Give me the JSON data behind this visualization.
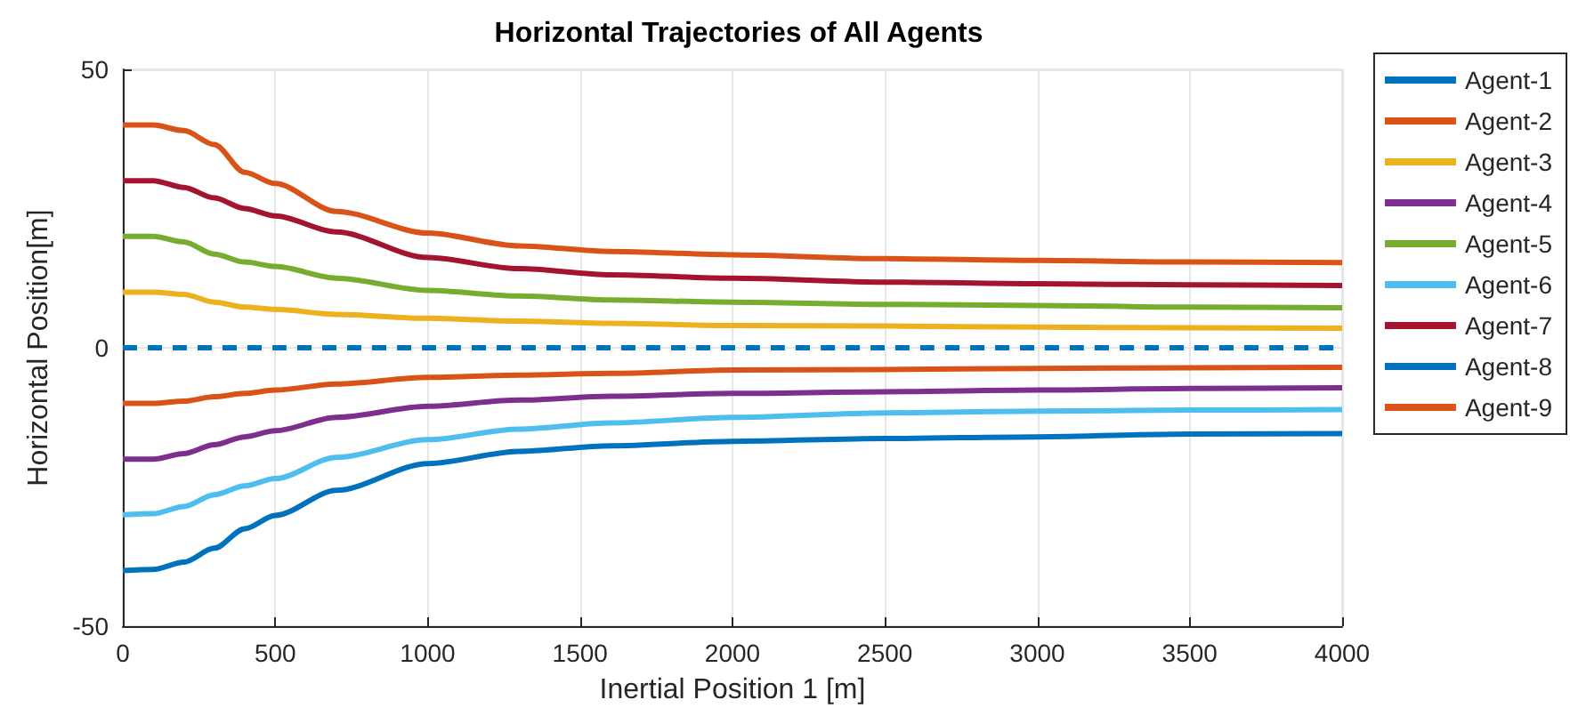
{
  "chart_data": {
    "type": "line",
    "title": "Horizontal Trajectories of All Agents",
    "xlabel": "Inertial Position 1 [m]",
    "ylabel": "Horizontal Position[m]",
    "x": [
      0,
      100,
      200,
      300,
      400,
      500,
      700,
      1000,
      1300,
      1600,
      2000,
      2500,
      3000,
      3500,
      4000
    ],
    "series": [
      {
        "name": "Agent-1",
        "color": "#0072bd",
        "line_style": "dashed",
        "values": [
          0,
          0,
          0,
          0,
          0,
          0,
          0,
          0,
          0,
          0,
          0,
          0,
          0,
          0,
          0
        ]
      },
      {
        "name": "Agent-2",
        "color": "#d95319",
        "values": [
          40,
          40,
          39,
          36.5,
          31.5,
          29.5,
          24.5,
          20.6,
          18.3,
          17.3,
          16.7,
          16.0,
          15.7,
          15.4,
          15.3
        ]
      },
      {
        "name": "Agent-3",
        "color": "#edb120",
        "values": [
          10,
          10,
          9.6,
          8.2,
          7.3,
          6.9,
          6.0,
          5.3,
          4.8,
          4.4,
          4.0,
          3.9,
          3.7,
          3.6,
          3.5
        ]
      },
      {
        "name": "Agent-4",
        "color": "#7e2f8e",
        "values": [
          -20,
          -20,
          -19,
          -17.4,
          -16,
          -14.9,
          -12.5,
          -10.5,
          -9.4,
          -8.7,
          -8.2,
          -7.9,
          -7.6,
          -7.3,
          -7.2
        ]
      },
      {
        "name": "Agent-5",
        "color": "#77ac30",
        "values": [
          20,
          20,
          19,
          16.8,
          15.4,
          14.6,
          12.5,
          10.3,
          9.3,
          8.6,
          8.2,
          7.8,
          7.6,
          7.3,
          7.2
        ]
      },
      {
        "name": "Agent-6",
        "color": "#4dbeee",
        "values": [
          -30,
          -29.8,
          -28.5,
          -26.4,
          -24.8,
          -23.5,
          -19.7,
          -16.5,
          -14.6,
          -13.5,
          -12.5,
          -11.7,
          -11.4,
          -11.2,
          -11.1
        ]
      },
      {
        "name": "Agent-7",
        "color": "#a2142f",
        "values": [
          30,
          30,
          28.8,
          26.9,
          25,
          23.7,
          20.8,
          16.2,
          14.2,
          13.1,
          12.5,
          11.8,
          11.5,
          11.3,
          11.2
        ]
      },
      {
        "name": "Agent-8",
        "color": "#0072bd",
        "values": [
          -40,
          -39.8,
          -38.5,
          -36,
          -32.5,
          -30.1,
          -25.6,
          -20.8,
          -18.6,
          -17.6,
          -16.8,
          -16.3,
          -16.0,
          -15.5,
          -15.4
        ]
      },
      {
        "name": "Agent-9",
        "color": "#d95319",
        "values": [
          -10,
          -10,
          -9.6,
          -8.8,
          -8.2,
          -7.6,
          -6.5,
          -5.3,
          -4.9,
          -4.6,
          -4.0,
          -3.9,
          -3.7,
          -3.6,
          -3.5
        ]
      }
    ],
    "xlim": [
      0,
      4000
    ],
    "xticks": [
      0,
      500,
      1000,
      1500,
      2000,
      2500,
      3000,
      3500,
      4000
    ],
    "ylim": [
      -50,
      50
    ],
    "yticks": [
      -50,
      0,
      50
    ],
    "grid": true,
    "legend": "right",
    "marker": "none",
    "line_style": "solid"
  }
}
